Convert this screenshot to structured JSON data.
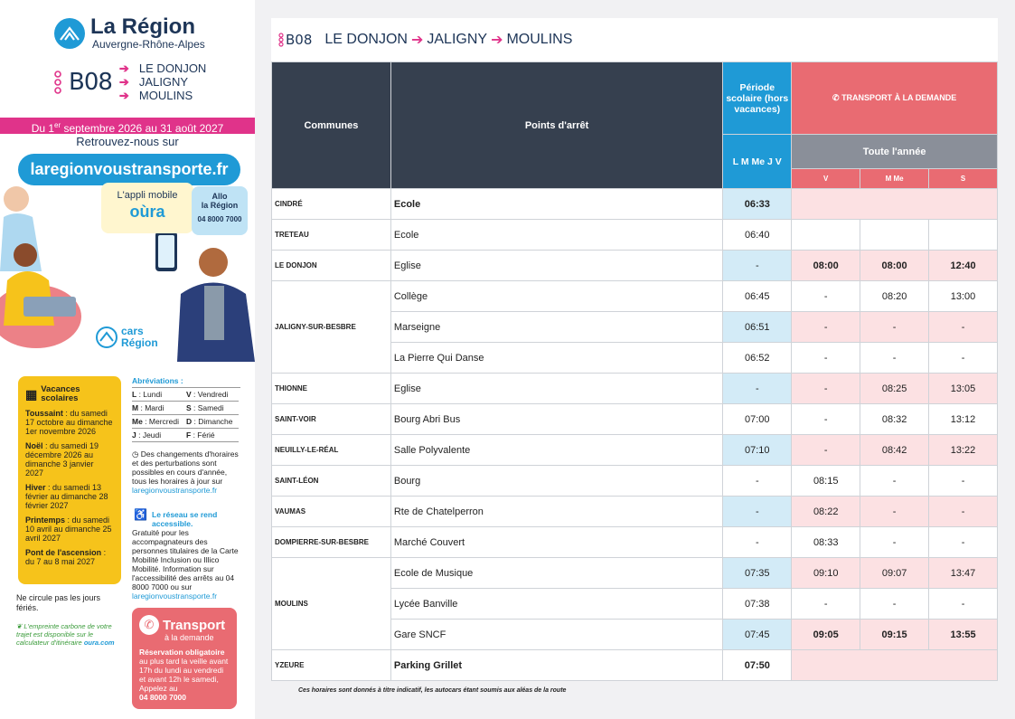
{
  "brand": {
    "name": "La Région",
    "sub": "Auvergne-Rhône-Alpes"
  },
  "line": {
    "code": "B08",
    "stops": [
      "LE DONJON",
      "JALIGNY",
      "MOULINS"
    ]
  },
  "dates": {
    "prefix": "Du 1",
    "sup": "er",
    "rest": " septembre 2026 au 31 août 2027"
  },
  "retrouvez": "Retrouvez-nous sur",
  "website": "laregionvoustransporte.fr",
  "app": {
    "label": "L'appli mobile",
    "name": "oùra"
  },
  "allo": {
    "l1": "Allo",
    "l2": "la Région",
    "phone": "04 8000 7000"
  },
  "cars": {
    "l1": "cars",
    "l2": "Région"
  },
  "vacances": {
    "title": "Vacances scolaires",
    "items": [
      {
        "name": "Toussaint",
        "text": " : du samedi 17 octobre au dimanche 1er novembre 2026"
      },
      {
        "name": "Noël",
        "text": " : du samedi 19 décembre 2026 au dimanche 3 janvier 2027"
      },
      {
        "name": "Hiver",
        "text": " : du samedi 13 février au dimanche 28 février 2027"
      },
      {
        "name": "Printemps",
        "text": " : du samedi 10 avril au dimanche 25 avril 2027"
      },
      {
        "name": "Pont de l'ascension",
        "text": " : du 7 au 8 mai 2027"
      }
    ]
  },
  "abbr": {
    "title": "Abréviations :",
    "items": [
      {
        "k": "L",
        "v": "Lundi"
      },
      {
        "k": "V",
        "v": "Vendredi"
      },
      {
        "k": "M",
        "v": "Mardi"
      },
      {
        "k": "S",
        "v": "Samedi"
      },
      {
        "k": "Me",
        "v": "Mercredi"
      },
      {
        "k": "D",
        "v": "Dimanche"
      },
      {
        "k": "J",
        "v": "Jeudi"
      },
      {
        "k": "F",
        "v": "Férié"
      }
    ]
  },
  "changes": {
    "text": "Des changements d'horaires et des perturbations sont possibles en cours d'année, tous les horaires à jour sur",
    "url": "laregionvoustransporte.fr"
  },
  "access": {
    "title": "Le réseau se rend accessible.",
    "text": "Gratuité pour les accompagnateurs des personnes titulaires de la Carte Mobilité Inclusion ou Illico Mobilité. Information sur l'accessibilité des arrêts au 04 8000 7000 ou sur",
    "url": "laregionvoustransporte.fr"
  },
  "nocirc": "Ne circule pas les jours fériés.",
  "carbon": {
    "text": "L'empreinte carbone de votre trajet est disponible sur le calculateur d'itinéraire",
    "link": "oura.com"
  },
  "tad": {
    "title": "Transport",
    "sub": "à la demande",
    "bold1": "Réservation obligatoire",
    "text": " au plus tard la veille avant 17h du lundi au vendredi et avant 12h le samedi, Appelez au",
    "phone": "04 8000 7000"
  },
  "table": {
    "col_communes": "Communes",
    "col_points": "Points d'arrêt",
    "col_periode": "Période scolaire (hors vacances)",
    "col_days": "L M Me J V",
    "col_tad": "TRANSPORT À LA DEMANDE",
    "col_year": "Toute l'année",
    "col_v": "V",
    "col_mme": "M Me",
    "col_s": "S",
    "rows": [
      {
        "commune": "CINDRÉ",
        "stop": "Ecole",
        "bold": true,
        "times": [
          "06:33",
          "",
          "",
          ""
        ]
      },
      {
        "commune": "TRETEAU",
        "stop": "Ecole",
        "bold": false,
        "times": [
          "06:40",
          "",
          "",
          ""
        ]
      },
      {
        "commune": "LE DONJON",
        "stop": "Eglise",
        "bold": false,
        "times": [
          "-",
          "08:00",
          "08:00",
          "12:40"
        ]
      },
      {
        "commune": "JALIGNY-SUR-BESBRE",
        "stop": "Collège",
        "bold": false,
        "times": [
          "06:45",
          "-",
          "08:20",
          "13:00"
        ]
      },
      {
        "commune": "",
        "stop": "Marseigne",
        "bold": false,
        "times": [
          "06:51",
          "-",
          "-",
          "-"
        ]
      },
      {
        "commune": "",
        "stop": "La Pierre Qui Danse",
        "bold": false,
        "times": [
          "06:52",
          "-",
          "-",
          "-"
        ]
      },
      {
        "commune": "THIONNE",
        "stop": "Eglise",
        "bold": false,
        "times": [
          "-",
          "-",
          "08:25",
          "13:05"
        ]
      },
      {
        "commune": "SAINT-VOIR",
        "stop": "Bourg Abri Bus",
        "bold": false,
        "times": [
          "07:00",
          "-",
          "08:32",
          "13:12"
        ]
      },
      {
        "commune": "NEUILLY-LE-RÉAL",
        "stop": "Salle Polyvalente",
        "bold": false,
        "times": [
          "07:10",
          "-",
          "08:42",
          "13:22"
        ]
      },
      {
        "commune": "SAINT-LÉON",
        "stop": "Bourg",
        "bold": false,
        "times": [
          "-",
          "08:15",
          "-",
          "-"
        ]
      },
      {
        "commune": "VAUMAS",
        "stop": "Rte de Chatelperron",
        "bold": false,
        "times": [
          "-",
          "08:22",
          "-",
          "-"
        ]
      },
      {
        "commune": "DOMPIERRE-SUR-BESBRE",
        "stop": "Marché Couvert",
        "bold": false,
        "times": [
          "-",
          "08:33",
          "-",
          "-"
        ]
      },
      {
        "commune": "MOULINS",
        "stop": "Ecole de Musique",
        "bold": false,
        "times": [
          "07:35",
          "09:10",
          "09:07",
          "13:47"
        ]
      },
      {
        "commune": "",
        "stop": "Lycée Banville",
        "bold": false,
        "times": [
          "07:38",
          "-",
          "-",
          "-"
        ]
      },
      {
        "commune": "",
        "stop": "Gare SNCF",
        "bold": false,
        "times": [
          "07:45",
          "09:05",
          "09:15",
          "13:55"
        ]
      },
      {
        "commune": "YZEURE",
        "stop": "Parking Grillet",
        "bold": true,
        "times": [
          "07:50",
          "",
          "",
          ""
        ]
      }
    ]
  },
  "footnote": "Ces horaires sont donnés à titre indicatif, les autocars étant soumis aux aléas de la route",
  "colors": {
    "blue": "#1f9ad6",
    "pink": "#e0338a",
    "dark": "#36404f",
    "red": "#e96b72",
    "yellow": "#f6c31b"
  }
}
